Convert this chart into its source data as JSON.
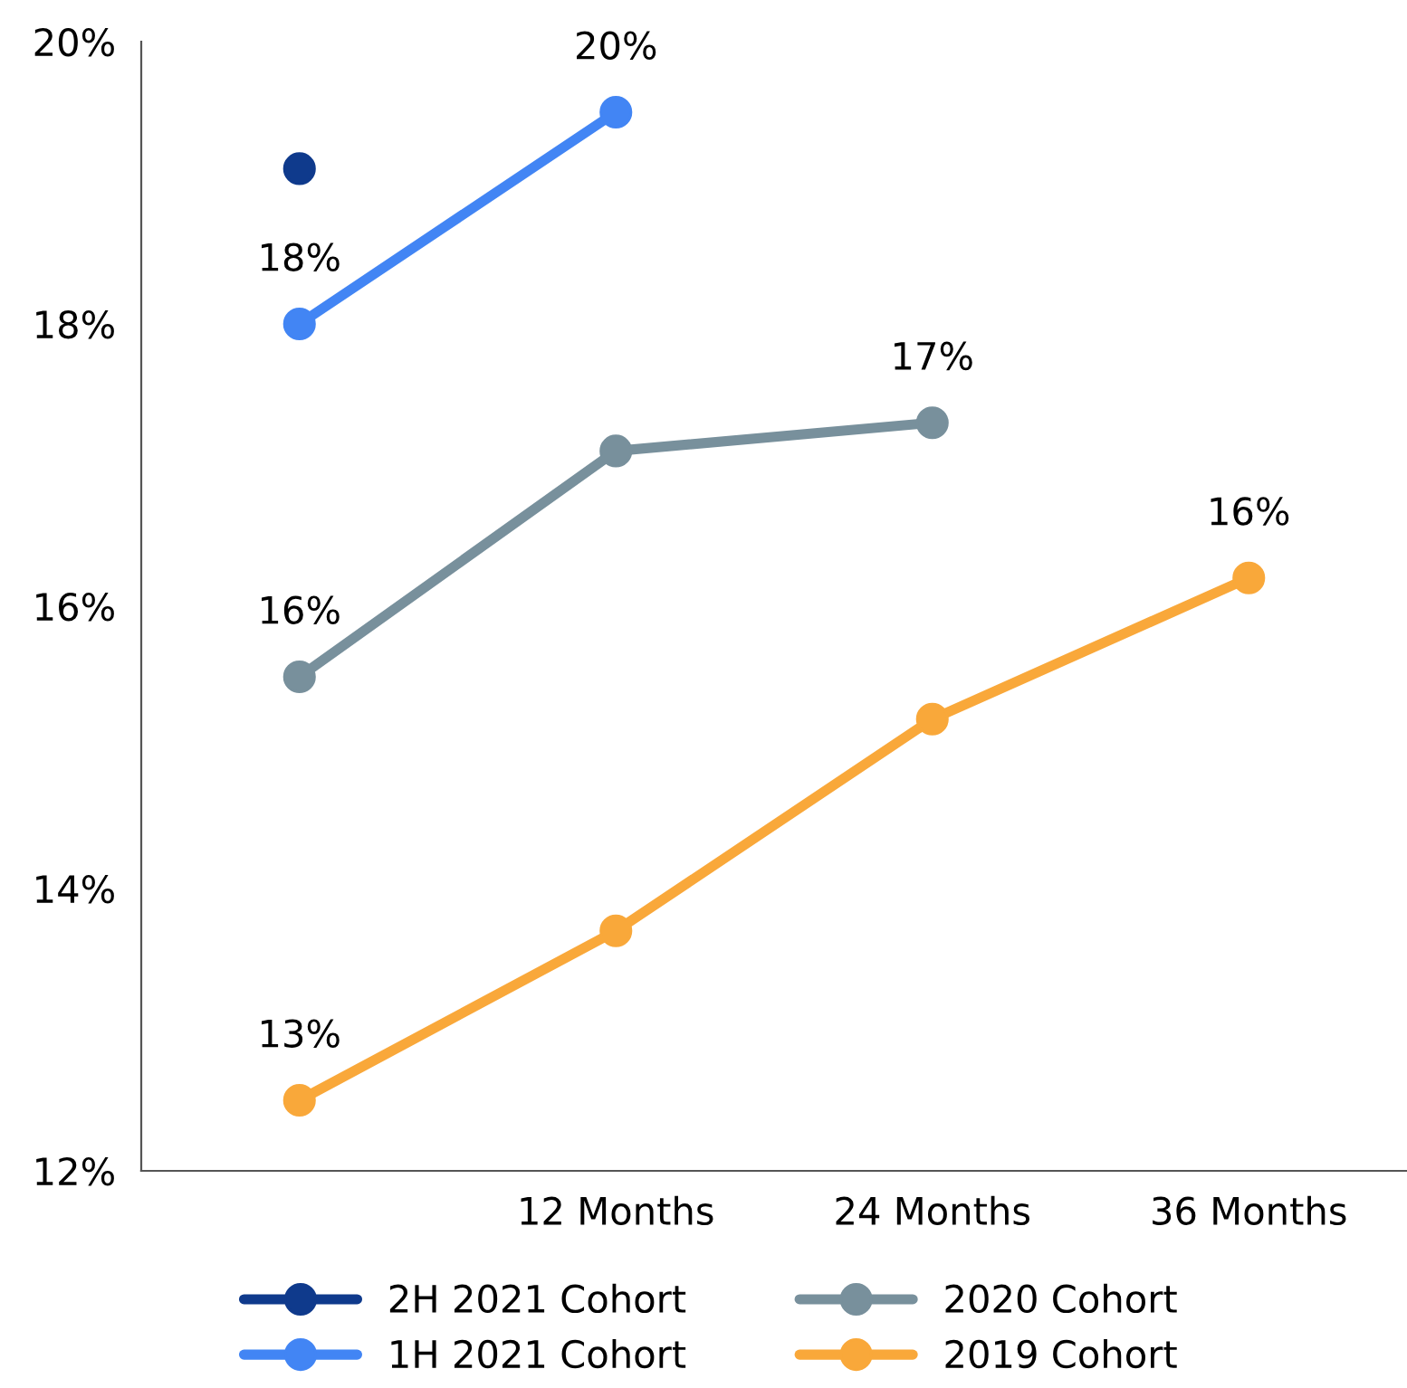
{
  "chart_data": {
    "type": "line",
    "categories": [
      null,
      "12 Months",
      "24 Months",
      "36 Months"
    ],
    "ylim": [
      12,
      20
    ],
    "yticks": [
      {
        "value": 12,
        "label": "12%"
      },
      {
        "value": 14,
        "label": "14%"
      },
      {
        "value": 16,
        "label": "16%"
      },
      {
        "value": 18,
        "label": "18%"
      },
      {
        "value": 20,
        "label": "20%"
      }
    ],
    "grid": false,
    "legend": "bottom",
    "marker": "circle",
    "line_style": "solid",
    "series": [
      {
        "name": "2H 2021 Cohort",
        "color": "#0f3a8c",
        "values": [
          19.1,
          null,
          null,
          null
        ],
        "value_labels": [
          null,
          null,
          null,
          null
        ]
      },
      {
        "name": "1H 2021 Cohort",
        "color": "#4285f4",
        "values": [
          18.0,
          19.5,
          null,
          null
        ],
        "value_labels": [
          "18%",
          "20%",
          null,
          null
        ]
      },
      {
        "name": "2020 Cohort",
        "color": "#78909c",
        "values": [
          15.5,
          17.1,
          17.3,
          null
        ],
        "value_labels": [
          "16%",
          null,
          "17%",
          null
        ]
      },
      {
        "name": "2019 Cohort",
        "color": "#f9a83a",
        "values": [
          12.5,
          13.7,
          15.2,
          16.2
        ],
        "value_labels": [
          "13%",
          null,
          null,
          "16%"
        ]
      }
    ]
  }
}
